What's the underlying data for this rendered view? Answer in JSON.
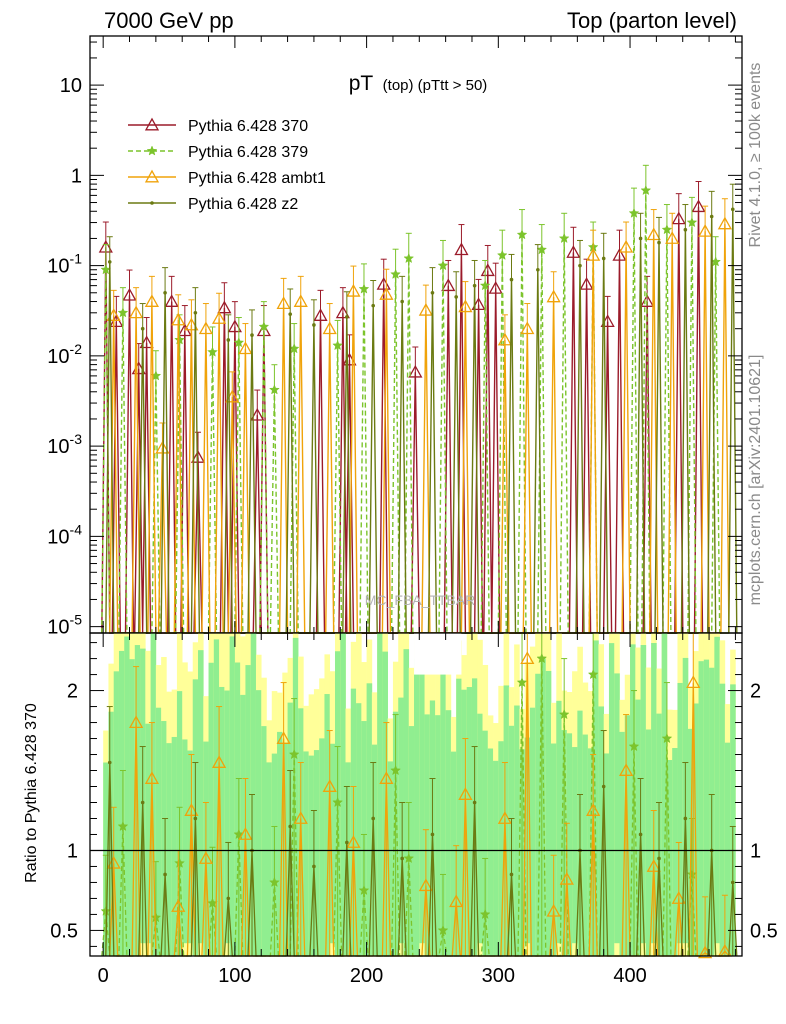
{
  "header": {
    "left": "7000 GeV pp",
    "right": "Top (parton level)"
  },
  "side_labels": {
    "rivet": "Rivet 4.1.0, ≥ 100k events",
    "arxiv": "mcplots.cern.ch [arXiv:2401.10621]"
  },
  "watermark": "MC_FBA_TTBAR",
  "colors": {
    "p370": "#9b1b2a",
    "p379": "#7cc42c",
    "ambt1": "#f0a30a",
    "z2": "#6b7a12",
    "band_green": "#90ee90",
    "band_yellow": "#ffff99"
  },
  "chart_data": [
    {
      "type": "line",
      "title": "pT (top) (pTtt > 50)",
      "title_main": "pT",
      "title_sub": "(top) (pTtt > 50)",
      "xlabel": "",
      "ylabel": "",
      "yscale": "log",
      "xlim": [
        -10,
        485
      ],
      "ylim": [
        8.5e-06,
        35
      ],
      "y_ticks": [
        10,
        1,
        0.1,
        0.01,
        0.001,
        0.0001,
        1e-05
      ],
      "y_tick_labels": [
        "10",
        "1",
        "10^-1",
        "10^-2",
        "10^-3",
        "10^-4",
        "10^-5"
      ],
      "legend": "top-left",
      "series": [
        {
          "name": "Pythia 6.428 370",
          "key": "p370",
          "marker": "triangle-open",
          "dash": "solid",
          "points": [
            [
              2,
              0.16
            ],
            [
              10,
              0.024
            ],
            [
              20,
              0.047
            ],
            [
              27,
              0.0072
            ],
            [
              33,
              0.014
            ],
            [
              52,
              0.04
            ],
            [
              62,
              0.019
            ],
            [
              72,
              0.00075
            ],
            [
              92,
              0.034
            ],
            [
              100,
              0.021
            ],
            [
              117,
              0.0022
            ],
            [
              122,
              0.019
            ],
            [
              165,
              0.028
            ],
            [
              182,
              0.03
            ],
            [
              187,
              0.009
            ],
            [
              213,
              0.062
            ],
            [
              237,
              0.0066
            ],
            [
              262,
              0.06
            ],
            [
              272,
              0.15
            ],
            [
              285,
              0.037
            ],
            [
              292,
              0.088
            ],
            [
              298,
              0.056
            ],
            [
              357,
              0.14
            ],
            [
              367,
              0.062
            ],
            [
              383,
              0.024
            ],
            [
              392,
              0.13
            ],
            [
              413,
              0.04
            ],
            [
              437,
              0.33
            ],
            [
              452,
              0.45
            ]
          ]
        },
        {
          "name": "Pythia 6.428 379",
          "key": "p379",
          "marker": "star",
          "dash": "dashed",
          "points": [
            [
              2,
              0.09
            ],
            [
              15,
              0.03
            ],
            [
              40,
              0.006
            ],
            [
              58,
              0.015
            ],
            [
              83,
              0.011
            ],
            [
              103,
              0.014
            ],
            [
              122,
              0.021
            ],
            [
              130,
              0.0042
            ],
            [
              145,
              0.012
            ],
            [
              178,
              0.013
            ],
            [
              198,
              0.055
            ],
            [
              222,
              0.08
            ],
            [
              232,
              0.12
            ],
            [
              258,
              0.1
            ],
            [
              290,
              0.06
            ],
            [
              303,
              0.13
            ],
            [
              318,
              0.22
            ],
            [
              333,
              0.15
            ],
            [
              350,
              0.2
            ],
            [
              372,
              0.16
            ],
            [
              403,
              0.38
            ],
            [
              412,
              0.68
            ],
            [
              428,
              0.25
            ],
            [
              447,
              0.3
            ],
            [
              465,
              0.11
            ]
          ]
        },
        {
          "name": "Pythia 6.428 ambt1",
          "key": "ambt1",
          "marker": "triangle-open",
          "dash": "solid",
          "points": [
            [
              8,
              0.028
            ],
            [
              25,
              0.03
            ],
            [
              37,
              0.04
            ],
            [
              45,
              0.00095
            ],
            [
              57,
              0.025
            ],
            [
              67,
              0.022
            ],
            [
              78,
              0.02
            ],
            [
              88,
              0.026
            ],
            [
              98,
              0.0035
            ],
            [
              108,
              0.012
            ],
            [
              137,
              0.038
            ],
            [
              150,
              0.04
            ],
            [
              172,
              0.02
            ],
            [
              190,
              0.052
            ],
            [
              215,
              0.048
            ],
            [
              245,
              0.032
            ],
            [
              275,
              0.035
            ],
            [
              305,
              0.015
            ],
            [
              322,
              0.02
            ],
            [
              342,
              0.045
            ],
            [
              372,
              0.13
            ],
            [
              397,
              0.16
            ],
            [
              418,
              0.22
            ],
            [
              432,
              0.2
            ],
            [
              457,
              0.24
            ],
            [
              472,
              0.29
            ]
          ]
        },
        {
          "name": "Pythia 6.428 z2",
          "key": "z2",
          "marker": "dot",
          "dash": "solid",
          "points": [
            [
              5,
              0.11
            ],
            [
              30,
              0.02
            ],
            [
              47,
              0.05
            ],
            [
              70,
              0.03
            ],
            [
              95,
              0.015
            ],
            [
              113,
              0.017
            ],
            [
              142,
              0.029
            ],
            [
              160,
              0.022
            ],
            [
              185,
              0.027
            ],
            [
              205,
              0.036
            ],
            [
              227,
              0.04
            ],
            [
              250,
              0.05
            ],
            [
              268,
              0.045
            ],
            [
              282,
              0.06
            ],
            [
              310,
              0.07
            ],
            [
              330,
              0.09
            ],
            [
              362,
              0.1
            ],
            [
              380,
              0.12
            ],
            [
              408,
              0.2
            ],
            [
              422,
              0.18
            ],
            [
              442,
              0.25
            ],
            [
              462,
              0.35
            ],
            [
              478,
              0.42
            ]
          ]
        }
      ]
    },
    {
      "type": "line",
      "title": "",
      "xlabel": "",
      "ylabel": "Ratio to Pythia 6.428 370",
      "xlim": [
        -10,
        485
      ],
      "ylim": [
        0.34,
        2.36
      ],
      "x_ticks": [
        0,
        100,
        200,
        300,
        400
      ],
      "x_tick_labels": [
        "0",
        "100",
        "200",
        "300",
        "400"
      ],
      "y_ticks": [
        0.5,
        1,
        2
      ],
      "y_tick_labels": [
        "0.5",
        "1",
        "2"
      ],
      "reference": 1,
      "series": [
        {
          "name": "Pythia 6.428 379",
          "key": "p379",
          "points": [
            [
              2,
              0.62
            ],
            [
              15,
              1.15
            ],
            [
              40,
              0.58
            ],
            [
              58,
              0.92
            ],
            [
              83,
              0.67
            ],
            [
              103,
              1.1
            ],
            [
              130,
              0.8
            ],
            [
              145,
              1.6
            ],
            [
              178,
              1.3
            ],
            [
              198,
              0.75
            ],
            [
              222,
              1.5
            ],
            [
              232,
              0.95
            ],
            [
              258,
              0.5
            ],
            [
              290,
              0.6
            ],
            [
              318,
              2.05
            ],
            [
              333,
              2.2
            ],
            [
              350,
              1.85
            ],
            [
              372,
              2.1
            ],
            [
              403,
              1.65
            ],
            [
              428,
              1.7
            ],
            [
              447,
              0.85
            ]
          ]
        },
        {
          "name": "Pythia 6.428 ambt1",
          "key": "ambt1",
          "points": [
            [
              8,
              0.92
            ],
            [
              25,
              1.8
            ],
            [
              37,
              1.45
            ],
            [
              57,
              0.65
            ],
            [
              67,
              1.25
            ],
            [
              78,
              0.95
            ],
            [
              88,
              1.55
            ],
            [
              108,
              1.1
            ],
            [
              137,
              1.7
            ],
            [
              150,
              1.2
            ],
            [
              172,
              1.4
            ],
            [
              190,
              1.05
            ],
            [
              215,
              1.45
            ],
            [
              245,
              0.78
            ],
            [
              268,
              0.68
            ],
            [
              275,
              1.35
            ],
            [
              305,
              1.2
            ],
            [
              322,
              2.2
            ],
            [
              342,
              0.62
            ],
            [
              352,
              0.82
            ],
            [
              372,
              1.25
            ],
            [
              397,
              1.5
            ],
            [
              418,
              0.9
            ],
            [
              437,
              0.7
            ],
            [
              448,
              2.05
            ],
            [
              457,
              0.36
            ],
            [
              472,
              0.37
            ]
          ]
        },
        {
          "name": "Pythia 6.428 z2",
          "key": "z2",
          "points": [
            [
              5,
              1.55
            ],
            [
              30,
              1.3
            ],
            [
              47,
              0.85
            ],
            [
              70,
              1.2
            ],
            [
              95,
              0.7
            ],
            [
              113,
              1.0
            ],
            [
              142,
              1.15
            ],
            [
              160,
              0.9
            ],
            [
              185,
              1.05
            ],
            [
              205,
              1.2
            ],
            [
              227,
              0.95
            ],
            [
              250,
              1.1
            ],
            [
              282,
              1.3
            ],
            [
              310,
              0.85
            ],
            [
              362,
              1.0
            ],
            [
              380,
              1.4
            ],
            [
              408,
              1.1
            ],
            [
              422,
              0.95
            ],
            [
              442,
              1.2
            ],
            [
              462,
              1.0
            ],
            [
              478,
              0.8
            ]
          ]
        }
      ]
    }
  ]
}
